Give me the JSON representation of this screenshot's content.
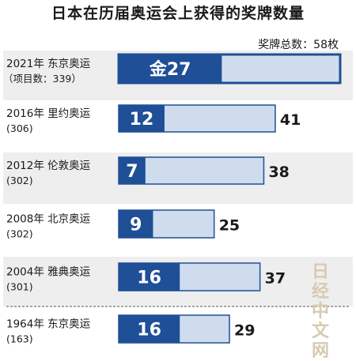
{
  "title": "日本在历届奥运会上获得的奖牌数量",
  "total_label": "奖牌总数：58枚",
  "watermark": [
    "日",
    "经",
    "中",
    "文",
    "网"
  ],
  "chart_data": {
    "type": "bar",
    "orientation": "horizontal",
    "stacked": true,
    "categories": [
      {
        "label": "2021年  东京奥运",
        "sub": "（项目数：339）"
      },
      {
        "label": "2016年  里约奥运",
        "sub": "(306)"
      },
      {
        "label": "2012年  伦敦奥运",
        "sub": "(302)"
      },
      {
        "label": "2008年  北京奥运",
        "sub": "(302)"
      },
      {
        "label": "2004年  雅典奥运",
        "sub": "(301)"
      },
      {
        "label": "1964年  东京奥运",
        "sub": "(163)"
      }
    ],
    "series": [
      {
        "name": "金",
        "values": [
          27,
          12,
          7,
          9,
          16,
          16
        ],
        "color": "#1f4f96"
      },
      {
        "values": [
          31,
          29,
          31,
          16,
          21,
          13
        ],
        "color": "#cfdcee"
      }
    ],
    "gold_labels": [
      "金27",
      "12",
      "7",
      "9",
      "16",
      "16"
    ],
    "total_labels": [
      "",
      "41",
      "38",
      "25",
      "37",
      "29"
    ],
    "xlim": [
      0,
      58
    ],
    "colors": {
      "gold": "#1f4f96",
      "rest": "#cfdcee",
      "border": "#1f4f96",
      "band": "#eeeeee"
    }
  }
}
